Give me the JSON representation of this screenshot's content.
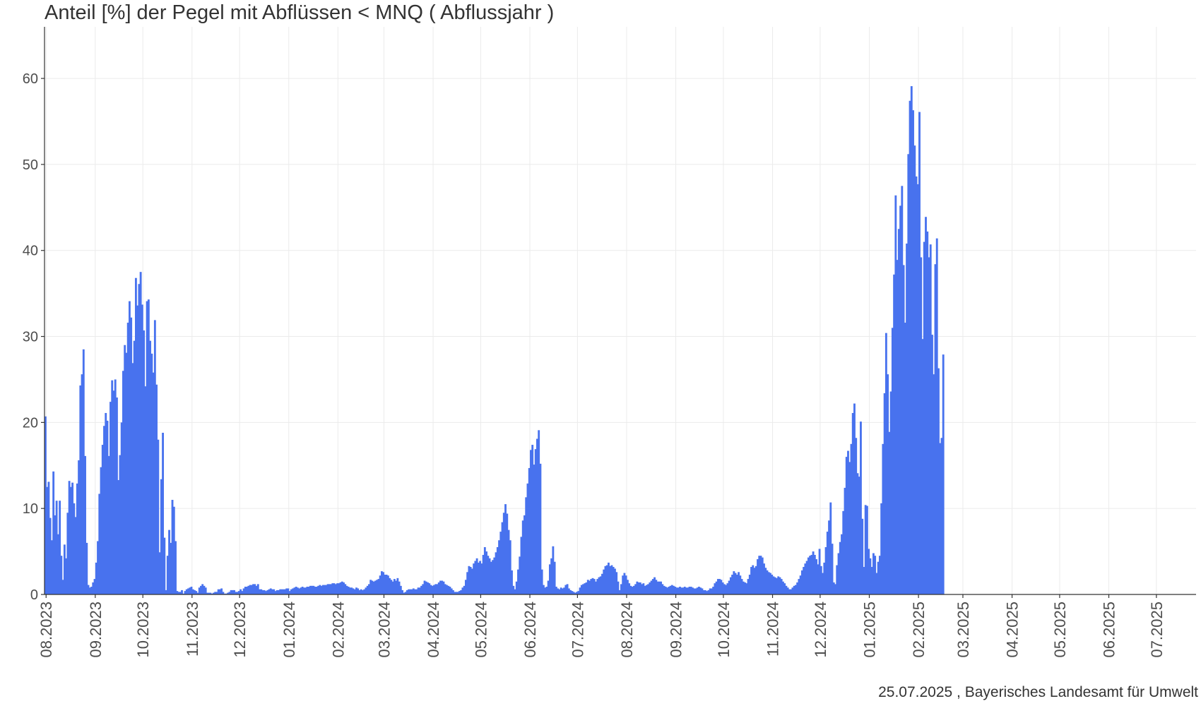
{
  "title": "Anteil [%] der Pegel mit Abflüssen < MNQ ( Abflussjahr )",
  "footer": "25.07.2025 , Bayerisches Landesamt für Umwelt",
  "colors": {
    "bar": "#4872ee",
    "grid": "#ebebeb",
    "axis": "#333333"
  },
  "chart_data": {
    "type": "bar",
    "x_start": "2023-07-31",
    "x_end": "2025-07-25",
    "xlim": [
      "2023-07-31",
      "2025-07-26"
    ],
    "ylim": [
      0,
      66
    ],
    "yticks": [
      0,
      10,
      20,
      30,
      40,
      50,
      60
    ],
    "grid": true,
    "legend": "none",
    "x_ticks": [
      {
        "date": "2023-08-01",
        "label": "08.2023"
      },
      {
        "date": "2023-09-01",
        "label": "09.2023"
      },
      {
        "date": "2023-10-01",
        "label": "10.2023"
      },
      {
        "date": "2023-11-01",
        "label": "11.2023"
      },
      {
        "date": "2023-12-01",
        "label": "12.2023"
      },
      {
        "date": "2024-01-01",
        "label": "01.2024"
      },
      {
        "date": "2024-02-01",
        "label": "02.2024"
      },
      {
        "date": "2024-03-01",
        "label": "03.2024"
      },
      {
        "date": "2024-04-01",
        "label": "04.2024"
      },
      {
        "date": "2024-05-01",
        "label": "05.2024"
      },
      {
        "date": "2024-06-01",
        "label": "06.2024"
      },
      {
        "date": "2024-07-01",
        "label": "07.2024"
      },
      {
        "date": "2024-08-01",
        "label": "08.2024"
      },
      {
        "date": "2024-09-01",
        "label": "09.2024"
      },
      {
        "date": "2024-10-01",
        "label": "10.2024"
      },
      {
        "date": "2024-11-01",
        "label": "11.2024"
      },
      {
        "date": "2024-12-01",
        "label": "12.2024"
      },
      {
        "date": "2025-01-01",
        "label": "01.2025"
      },
      {
        "date": "2025-02-01",
        "label": "02.2025"
      },
      {
        "date": "2025-03-01",
        "label": "03.2025"
      },
      {
        "date": "2025-04-01",
        "label": "04.2025"
      },
      {
        "date": "2025-05-01",
        "label": "05.2025"
      },
      {
        "date": "2025-06-01",
        "label": "06.2025"
      },
      {
        "date": "2025-07-01",
        "label": "07.2025"
      }
    ],
    "values": [
      20.7,
      12.5,
      13.1,
      8.9,
      6.3,
      14.3,
      9.2,
      10.9,
      7.0,
      10.9,
      4.5,
      1.7,
      5.8,
      4.2,
      9.5,
      13.2,
      12.5,
      13.0,
      10.6,
      9.0,
      12.9,
      15.6,
      24.3,
      25.6,
      28.5,
      16.1,
      6.0,
      1.1,
      0.8,
      0.9,
      1.4,
      1.8,
      3.7,
      6.2,
      11.7,
      14.8,
      17.4,
      19.6,
      21.1,
      20.2,
      16.1,
      22.4,
      24.9,
      23.7,
      25.0,
      22.9,
      13.3,
      16.2,
      20.0,
      26.0,
      29.0,
      28.1,
      31.6,
      34.1,
      32.2,
      26.9,
      29.5,
      36.8,
      33.6,
      36.1,
      37.5,
      33.7,
      30.7,
      24.2,
      34.1,
      34.3,
      29.5,
      28.0,
      25.8,
      31.9,
      24.4,
      18.0,
      4.9,
      13.4,
      18.8,
      6.6,
      0.5,
      4.5,
      7.5,
      6.0,
      11.0,
      10.2,
      6.2,
      0.4,
      0.3,
      0.3,
      0.5,
      0.1,
      0.4,
      0.6,
      0.7,
      0.8,
      0.9,
      0.6,
      0.5,
      0.4,
      0.2,
      0.8,
      1.0,
      1.2,
      1.0,
      0.8,
      0.2,
      0.2,
      0.2,
      0.1,
      0.2,
      0.3,
      0.3,
      0.6,
      0.6,
      0.7,
      0.3,
      0.1,
      0.1,
      0.2,
      0.3,
      0.5,
      0.5,
      0.5,
      0.3,
      0.3,
      0.4,
      0.6,
      0.4,
      0.7,
      0.9,
      0.9,
      1.0,
      1.1,
      1.1,
      1.2,
      1.2,
      1.0,
      1.2,
      0.6,
      0.6,
      0.5,
      0.5,
      0.4,
      0.5,
      0.6,
      0.7,
      0.6,
      0.6,
      0.4,
      0.5,
      0.5,
      0.6,
      0.6,
      0.6,
      0.6,
      0.7,
      0.7,
      0.4,
      0.6,
      0.7,
      0.8,
      0.9,
      0.8,
      0.7,
      0.8,
      0.9,
      0.8,
      0.8,
      0.9,
      0.9,
      1.0,
      1.0,
      1.0,
      0.9,
      0.9,
      1.0,
      1.1,
      1.0,
      1.1,
      1.1,
      1.1,
      1.2,
      1.2,
      1.2,
      1.3,
      1.3,
      1.2,
      1.3,
      1.3,
      1.4,
      1.5,
      1.4,
      1.2,
      1.0,
      0.9,
      0.8,
      0.8,
      0.7,
      0.6,
      0.8,
      0.7,
      0.5,
      0.6,
      0.5,
      0.6,
      0.8,
      1.0,
      1.2,
      1.7,
      1.6,
      1.5,
      1.6,
      1.7,
      1.8,
      2.2,
      2.7,
      2.6,
      2.3,
      2.3,
      2.2,
      1.9,
      1.7,
      1.5,
      1.8,
      1.6,
      1.9,
      1.5,
      1.0,
      0.5,
      0.2,
      0.3,
      0.5,
      0.6,
      0.6,
      0.6,
      0.7,
      0.6,
      0.6,
      0.8,
      0.8,
      1.0,
      1.2,
      1.6,
      1.5,
      1.4,
      1.3,
      1.1,
      1.0,
      1.1,
      1.2,
      1.2,
      1.4,
      1.6,
      1.6,
      1.5,
      1.2,
      1.1,
      1.0,
      0.9,
      0.7,
      0.5,
      0.3,
      0.3,
      0.3,
      0.4,
      0.5,
      0.8,
      1.0,
      1.7,
      2.6,
      3.3,
      3.2,
      3.0,
      3.6,
      3.9,
      4.2,
      3.7,
      3.9,
      3.6,
      4.6,
      5.5,
      5.0,
      4.5,
      4.2,
      3.8,
      4.0,
      4.3,
      4.9,
      5.5,
      6.3,
      7.3,
      8.4,
      9.5,
      10.5,
      9.4,
      7.5,
      6.3,
      2.8,
      1.0,
      0.6,
      1.5,
      2.9,
      4.4,
      6.7,
      8.6,
      9.2,
      11.3,
      12.9,
      14.7,
      16.8,
      17.4,
      15.1,
      16.9,
      18.1,
      19.1,
      15.2,
      2.9,
      1.1,
      0.8,
      0.9,
      1.6,
      3.5,
      4.2,
      5.6,
      3.8,
      0.9,
      0.7,
      0.6,
      0.8,
      0.7,
      0.8,
      1.1,
      1.2,
      0.7,
      0.5,
      0.4,
      0.3,
      0.2,
      0.3,
      0.4,
      0.8,
      1.1,
      1.2,
      1.3,
      1.4,
      1.7,
      1.6,
      1.8,
      1.9,
      1.8,
      1.5,
      1.8,
      2.0,
      2.1,
      2.4,
      2.9,
      3.3,
      3.4,
      3.7,
      3.3,
      3.4,
      3.2,
      3.0,
      2.6,
      1.5,
      0.5,
      1.2,
      2.2,
      2.5,
      2.2,
      1.7,
      1.3,
      1.0,
      0.9,
      1.0,
      1.2,
      1.5,
      1.4,
      1.4,
      1.2,
      1.3,
      1.0,
      1.1,
      1.2,
      1.4,
      1.6,
      1.8,
      2.0,
      1.7,
      1.5,
      1.5,
      1.5,
      1.2,
      1.0,
      0.9,
      0.8,
      0.9,
      1.0,
      1.1,
      1.0,
      0.9,
      0.8,
      0.8,
      0.9,
      0.8,
      0.8,
      0.9,
      0.8,
      0.8,
      0.9,
      0.9,
      0.8,
      0.7,
      0.7,
      0.8,
      0.9,
      0.8,
      0.7,
      0.5,
      0.5,
      0.4,
      0.5,
      0.7,
      0.7,
      0.9,
      1.3,
      1.5,
      1.8,
      1.8,
      1.7,
      1.4,
      1.2,
      1.1,
      1.3,
      1.6,
      2.0,
      2.3,
      2.7,
      2.5,
      2.3,
      2.6,
      2.2,
      1.8,
      1.5,
      1.4,
      1.3,
      1.8,
      2.3,
      3.2,
      3.4,
      3.1,
      3.3,
      4.1,
      4.5,
      4.5,
      4.3,
      3.6,
      3.1,
      2.8,
      2.6,
      2.5,
      2.3,
      2.1,
      2.0,
      1.9,
      2.1,
      2.0,
      1.8,
      1.5,
      1.3,
      1.0,
      0.8,
      0.6,
      0.6,
      0.8,
      1.0,
      1.1,
      1.4,
      1.8,
      2.2,
      2.8,
      3.2,
      3.6,
      3.9,
      4.3,
      4.5,
      4.6,
      5.0,
      4.6,
      4.1,
      3.5,
      5.3,
      3.3,
      2.5,
      3.7,
      5.5,
      7.3,
      8.6,
      10.7,
      5.9,
      1.4,
      1.2,
      3.4,
      4.8,
      6.1,
      7.0,
      9.7,
      12.4,
      16.0,
      16.7,
      15.4,
      17.5,
      21.1,
      22.2,
      18.2,
      14.1,
      13.7,
      20.1,
      8.8,
      3.2,
      10.4,
      10.3,
      5.3,
      4.2,
      3.2,
      4.8,
      4.5,
      2.5,
      3.8,
      4.5,
      10.6,
      17.5,
      23.4,
      30.4,
      25.6,
      18.9,
      23.6,
      31.0,
      37.2,
      46.4,
      38.9,
      42.5,
      45.2,
      47.5,
      38.3,
      31.6,
      40.8,
      51.2,
      57.4,
      59.1,
      56.3,
      52.2,
      48.6,
      47.7,
      56.1,
      39.2,
      29.7,
      41.0,
      43.9,
      42.2,
      39.2,
      40.7,
      30.2,
      25.6,
      38.4,
      41.4,
      26.3,
      17.6,
      18.2,
      27.9
    ]
  }
}
